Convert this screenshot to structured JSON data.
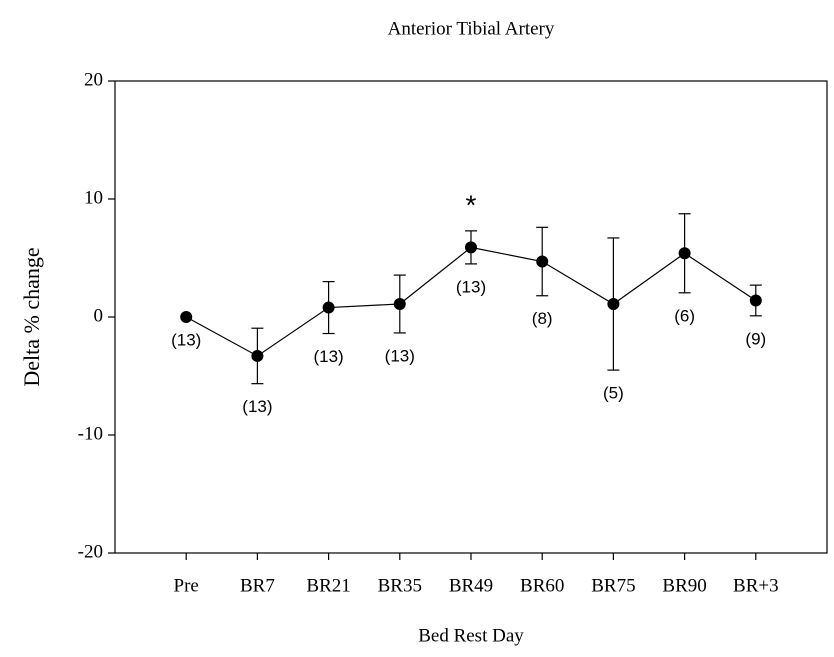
{
  "chart_data": {
    "type": "line",
    "title": "Anterior Tibial Artery",
    "xlabel": "Bed Rest Day",
    "ylabel": "Delta % change",
    "categories": [
      "Pre",
      "BR7",
      "BR21",
      "BR35",
      "BR49",
      "BR60",
      "BR75",
      "BR90",
      "BR+3"
    ],
    "series": [
      {
        "color": "#000000",
        "values": [
          0,
          -3.3,
          0.8,
          1.1,
          5.9,
          4.7,
          1.1,
          5.4,
          1.4
        ],
        "errors": [
          0,
          2.35,
          2.2,
          2.45,
          1.4,
          2.9,
          5.6,
          3.35,
          1.3
        ]
      }
    ],
    "n_labels": [
      "(13)",
      "(13)",
      "(13)",
      "(13)",
      "(13)",
      "(8)",
      "(5)",
      "(6)",
      "(9)"
    ],
    "significance": [
      null,
      null,
      null,
      null,
      "*",
      null,
      null,
      null,
      null
    ],
    "ylim": [
      -20,
      20
    ],
    "yticks": [
      -20,
      -10,
      0,
      10,
      20
    ]
  }
}
